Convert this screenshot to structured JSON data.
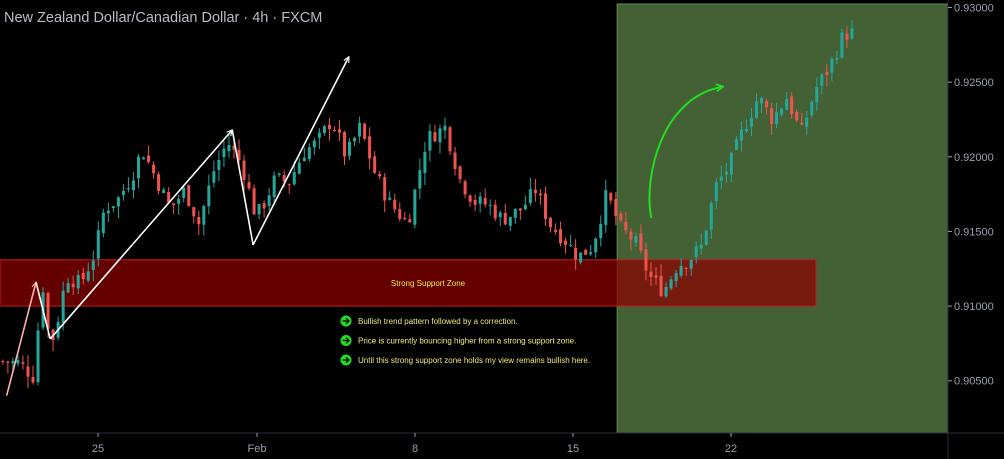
{
  "header": {
    "title": "New Zealand Dollar/Canadian Dollar · 4h · FXCM"
  },
  "colors": {
    "background": "#000000",
    "up_candle": "#26a69a",
    "down_candle": "#ef5350",
    "support_zone": "#8b0000",
    "highlight_region": "#4a6b3a",
    "arrow": "#ffffff",
    "curved_arrow": "#22dd22",
    "bullet_arrow": "#22dd22",
    "axis_text": "#9aa0aa",
    "annotation_text": "#f2e640"
  },
  "chart_data": {
    "type": "candlestick",
    "symbol": "NZDCAD",
    "timeframe": "4h",
    "source": "FXCM",
    "y_axis": {
      "ticks": [
        "0.93000",
        "0.92500",
        "0.92000",
        "0.91500",
        "0.91000",
        "0.90500"
      ],
      "values": [
        0.93,
        0.925,
        0.92,
        0.915,
        0.91,
        0.905
      ],
      "range": [
        0.9015,
        0.9305
      ]
    },
    "x_axis": {
      "ticks": [
        "25",
        "Feb",
        "8",
        "15",
        "22"
      ],
      "range": [
        0,
        100
      ]
    },
    "price_path": [
      [
        0,
        0.9063
      ],
      [
        2,
        0.9062
      ],
      [
        3.5,
        0.9053
      ],
      [
        4.5,
        0.9115
      ],
      [
        5.3,
        0.9072
      ],
      [
        6,
        0.9088
      ],
      [
        7,
        0.912
      ],
      [
        8.5,
        0.9115
      ],
      [
        10,
        0.9135
      ],
      [
        11,
        0.9165
      ],
      [
        12.5,
        0.9172
      ],
      [
        14,
        0.9188
      ],
      [
        15,
        0.9205
      ],
      [
        16.5,
        0.9185
      ],
      [
        18,
        0.9165
      ],
      [
        19.5,
        0.9178
      ],
      [
        21,
        0.9155
      ],
      [
        22.5,
        0.919
      ],
      [
        24,
        0.921
      ],
      [
        25.5,
        0.9195
      ],
      [
        27,
        0.916
      ],
      [
        27.8,
        0.9168
      ],
      [
        29,
        0.9185
      ],
      [
        30.5,
        0.9183
      ],
      [
        32,
        0.9203
      ],
      [
        33.5,
        0.921
      ],
      [
        35,
        0.9225
      ],
      [
        36.5,
        0.92
      ],
      [
        38,
        0.922
      ],
      [
        39.5,
        0.919
      ],
      [
        41,
        0.917
      ],
      [
        43,
        0.9155
      ],
      [
        45,
        0.9212
      ],
      [
        47,
        0.922
      ],
      [
        48.5,
        0.9185
      ],
      [
        50,
        0.917
      ],
      [
        51.5,
        0.9168
      ],
      [
        53,
        0.9158
      ],
      [
        55,
        0.9165
      ],
      [
        56.5,
        0.9178
      ],
      [
        58,
        0.9155
      ],
      [
        59.5,
        0.9145
      ],
      [
        61,
        0.9133
      ],
      [
        62.5,
        0.914
      ],
      [
        64,
        0.9175
      ],
      [
        65.5,
        0.9152
      ],
      [
        67,
        0.9143
      ],
      [
        68.5,
        0.912
      ],
      [
        70,
        0.911
      ],
      [
        71.5,
        0.9128
      ],
      [
        72.5,
        0.913
      ],
      [
        74,
        0.914
      ],
      [
        75.5,
        0.918
      ],
      [
        77,
        0.9195
      ],
      [
        78.5,
        0.922
      ],
      [
        80,
        0.924
      ],
      [
        81.5,
        0.9225
      ],
      [
        83,
        0.924
      ],
      [
        84.5,
        0.9215
      ],
      [
        86,
        0.9245
      ],
      [
        87.5,
        0.926
      ],
      [
        89,
        0.9282
      ],
      [
        90,
        0.9283
      ]
    ],
    "support_zone": {
      "label": "Strong Support Zone",
      "low": 0.91,
      "high": 0.9131
    },
    "highlight_region": {
      "from_x": 65.1,
      "to_x": 100
    },
    "arrows": [
      {
        "from": [
          0.7,
          0.904
        ],
        "to": [
          3.8,
          0.9116
        ],
        "color": "#ffffff"
      },
      {
        "from": [
          3.8,
          0.9116
        ],
        "to": [
          5.3,
          0.9078
        ],
        "color": "#ffffff"
      },
      {
        "from": [
          5.3,
          0.9078
        ],
        "to": [
          24.5,
          0.9218
        ],
        "color": "#ffffff"
      },
      {
        "from": [
          24.5,
          0.9218
        ],
        "to": [
          26.7,
          0.9141
        ],
        "color": "#ffffff"
      },
      {
        "from": [
          26.7,
          0.9141
        ],
        "to": [
          36.8,
          0.9267
        ],
        "color": "#ffffff"
      }
    ],
    "curved_arrow": {
      "from": [
        68.7,
        0.9159
      ],
      "to": [
        76.3,
        0.9247
      ],
      "color": "#22dd22"
    },
    "notes": [
      "Bullish trend pattern followed by a correction.",
      "Price is currently bouncing higher from a strong support zone.",
      "Until this strong support zone holds my view remains bullish here."
    ]
  }
}
